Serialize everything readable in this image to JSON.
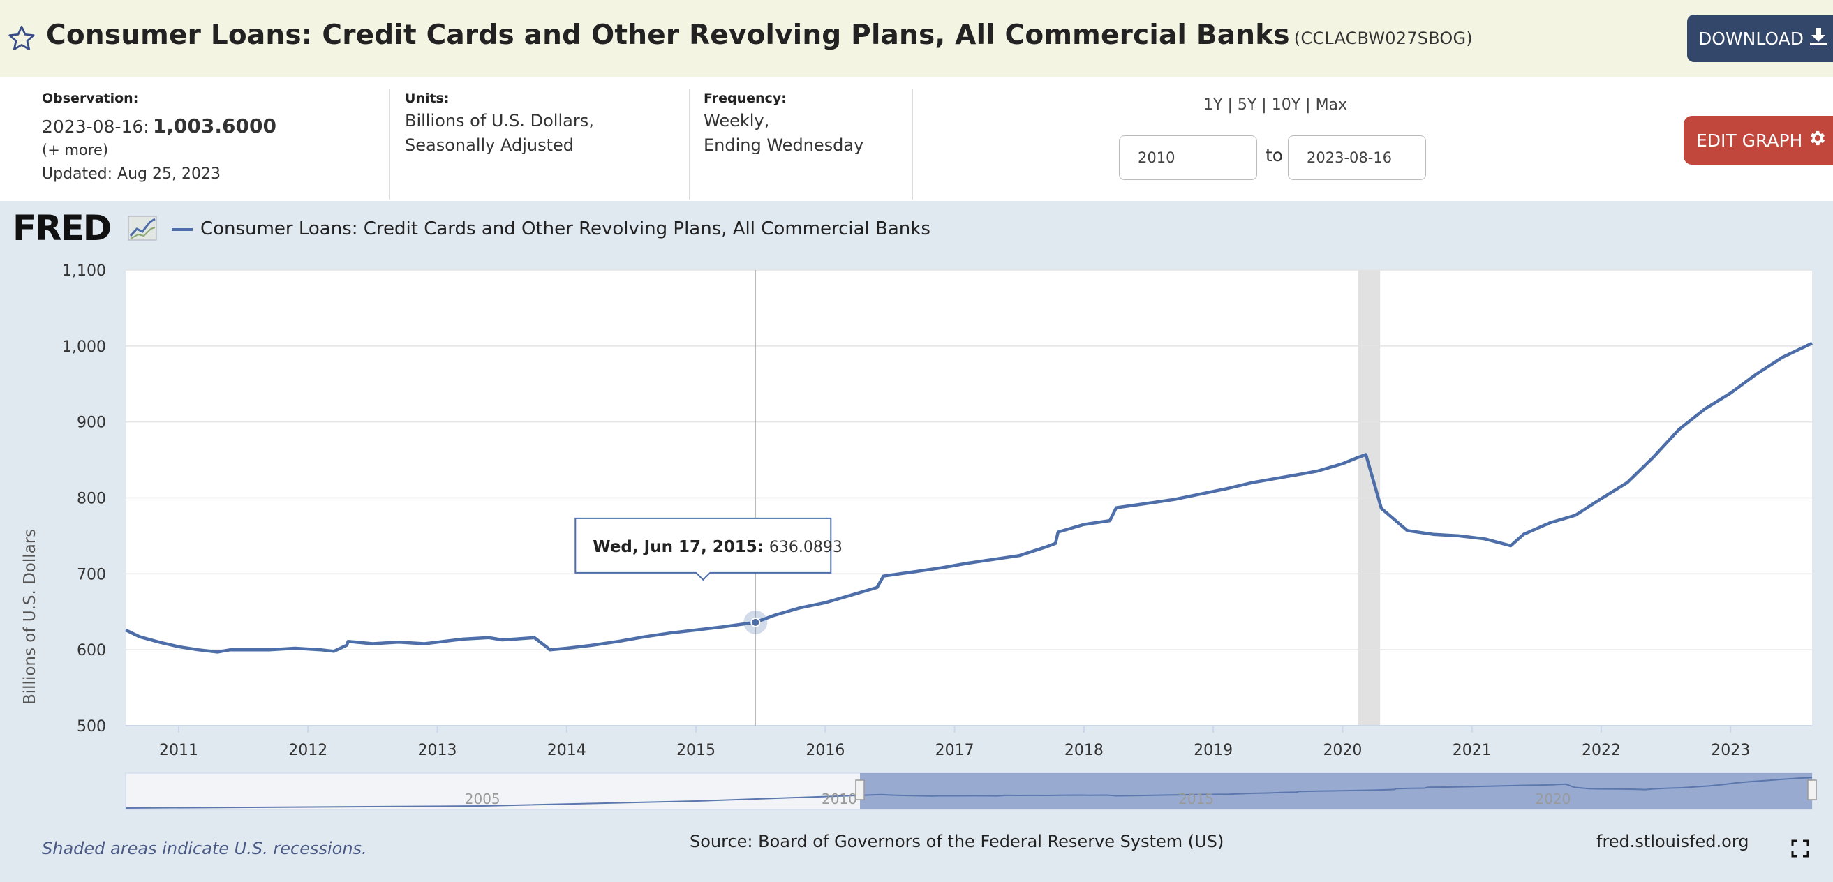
{
  "header": {
    "title": "Consumer Loans: Credit Cards and Other Revolving Plans, All Commercial Banks",
    "series_id": "(CCLACBW027SBOG)",
    "download_label": "DOWNLOAD",
    "icons": {
      "favorite": "star-icon",
      "download": "download-icon"
    }
  },
  "info": {
    "observation_label": "Observation:",
    "observation_date": "2023-08-16:",
    "observation_value": "1,003.6000",
    "more_label": "(+ more)",
    "updated": "Updated: Aug 25, 2023",
    "units_label": "Units:",
    "units_line1": "Billions of U.S. Dollars,",
    "units_line2": "Seasonally Adjusted",
    "frequency_label": "Frequency:",
    "frequency_line1": "Weekly,",
    "frequency_line2": "Ending Wednesday",
    "range_1y": "1Y",
    "range_5y": "5Y",
    "range_10y": "10Y",
    "range_max": "Max",
    "range_sep": "|",
    "start_date": "2010",
    "to_label": "to",
    "end_date": "2023-08-16",
    "edit_label": "EDIT GRAPH",
    "edit_icon": "gear-icon"
  },
  "legend": {
    "logo": "FRED",
    "series_name": "Consumer Loans: Credit Cards and Other Revolving Plans, All Commercial Banks"
  },
  "footer": {
    "recession_note": "Shaded areas indicate U.S. recessions.",
    "source": "Source: Board of Governors of the Federal Reserve System (US)",
    "site": "fred.stlouisfed.org",
    "fullscreen_icon": "fullscreen-icon"
  },
  "chart_data": {
    "type": "line",
    "ylabel": "Billions of U.S. Dollars",
    "ylim": [
      500,
      1100
    ],
    "yticks": [
      "500",
      "600",
      "700",
      "800",
      "900",
      "1,000",
      "1,100"
    ],
    "xlim": [
      2010.59,
      2023.63
    ],
    "xticks": [
      "2011",
      "2012",
      "2013",
      "2014",
      "2015",
      "2016",
      "2017",
      "2018",
      "2019",
      "2020",
      "2021",
      "2022",
      "2023"
    ],
    "grid": true,
    "line_color": "#4d6ea8",
    "recession": {
      "start": 2020.12,
      "end": 2020.29
    },
    "tooltip": {
      "label": "Wed, Jun 17, 2015:",
      "value": "636.0893",
      "x": 2015.46,
      "y": 636.0893
    },
    "series": [
      {
        "name": "Consumer Loans: Credit Cards and Other Revolving Plans, All Commercial Banks",
        "x": [
          2010.59,
          2010.7,
          2010.85,
          2011.0,
          2011.15,
          2011.3,
          2011.4,
          2011.5,
          2011.7,
          2011.9,
          2012.1,
          2012.2,
          2012.3,
          2012.31,
          2012.5,
          2012.7,
          2012.9,
          2013.0,
          2013.2,
          2013.4,
          2013.5,
          2013.6,
          2013.75,
          2013.85,
          2013.87,
          2014.0,
          2014.2,
          2014.4,
          2014.6,
          2014.8,
          2015.0,
          2015.2,
          2015.46,
          2015.6,
          2015.8,
          2016.0,
          2016.2,
          2016.4,
          2016.45,
          2016.7,
          2016.9,
          2017.1,
          2017.3,
          2017.5,
          2017.7,
          2017.78,
          2017.8,
          2018.0,
          2018.2,
          2018.25,
          2018.5,
          2018.7,
          2018.9,
          2019.1,
          2019.3,
          2019.5,
          2019.7,
          2019.8,
          2020.0,
          2020.1,
          2020.18,
          2020.3,
          2020.5,
          2020.7,
          2020.9,
          2021.1,
          2021.3,
          2021.4,
          2021.6,
          2021.8,
          2022.0,
          2022.2,
          2022.4,
          2022.6,
          2022.8,
          2023.0,
          2023.2,
          2023.4,
          2023.63
        ],
        "y": [
          626,
          617,
          610,
          604,
          600,
          597,
          600,
          600,
          600,
          602,
          600,
          598,
          606,
          611,
          608,
          610,
          608,
          610,
          614,
          616,
          613,
          614,
          616,
          603,
          600,
          602,
          606,
          611,
          617,
          622,
          626,
          630,
          636.0893,
          645,
          655,
          662,
          672,
          682,
          697,
          703,
          708,
          714,
          719,
          724,
          735,
          740,
          755,
          765,
          770,
          787,
          793,
          798,
          805,
          812,
          820,
          826,
          832,
          835,
          845,
          852,
          857,
          786,
          757,
          752,
          750,
          746,
          737,
          752,
          767,
          777,
          799,
          820,
          853,
          890,
          917,
          938,
          963,
          985,
          1003.6
        ]
      }
    ]
  },
  "navigator": {
    "tick_labels": [
      "2005",
      "2010",
      "2015",
      "2020"
    ]
  }
}
